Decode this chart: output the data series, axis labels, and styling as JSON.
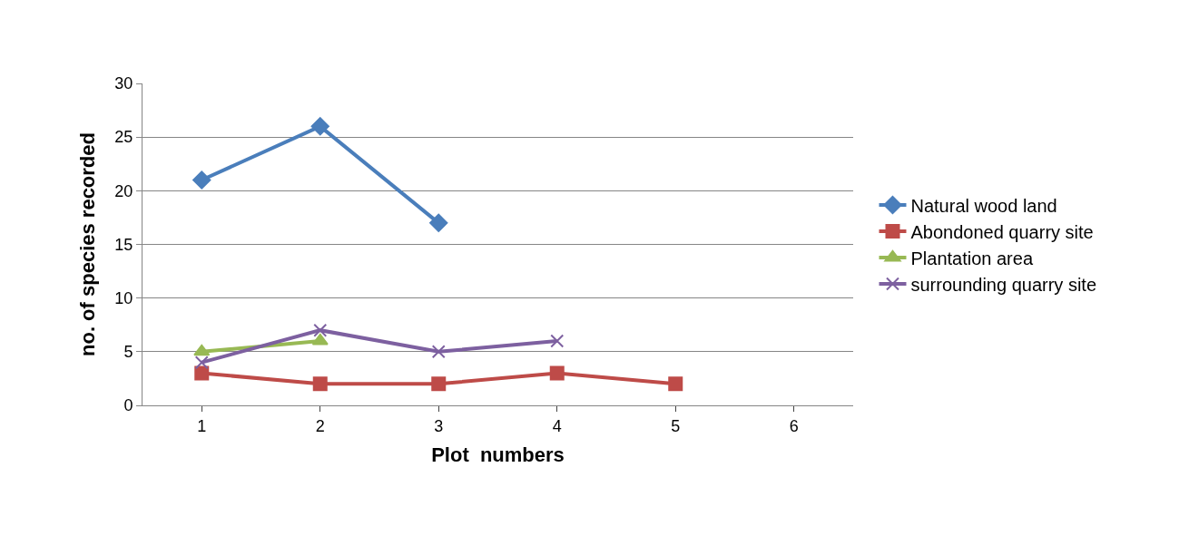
{
  "chart_data": {
    "type": "line",
    "xlabel": "Plot  numbers",
    "ylabel": "no. of species recorded",
    "categories": [
      "1",
      "2",
      "3",
      "4",
      "5",
      "6"
    ],
    "series": [
      {
        "name": "Natural wood land",
        "color": "#4a7ebb",
        "marker": "diamond",
        "values": [
          21,
          26,
          17,
          null,
          null,
          null
        ]
      },
      {
        "name": "Abondoned quarry site",
        "color": "#be4b48",
        "marker": "square",
        "values": [
          3,
          2,
          2,
          3,
          2,
          null
        ]
      },
      {
        "name": "Plantation area",
        "color": "#98b954",
        "marker": "triangle",
        "values": [
          5,
          6,
          null,
          null,
          null,
          null
        ]
      },
      {
        "name": "surrounding quarry site",
        "color": "#7d60a0",
        "marker": "cross",
        "values": [
          4,
          7,
          5,
          6,
          null,
          null
        ]
      }
    ],
    "ylim": [
      0,
      30
    ],
    "yticks": [
      0,
      5,
      10,
      15,
      20,
      25,
      30
    ],
    "grid": "y",
    "legend": "right",
    "line_style": "solid"
  }
}
